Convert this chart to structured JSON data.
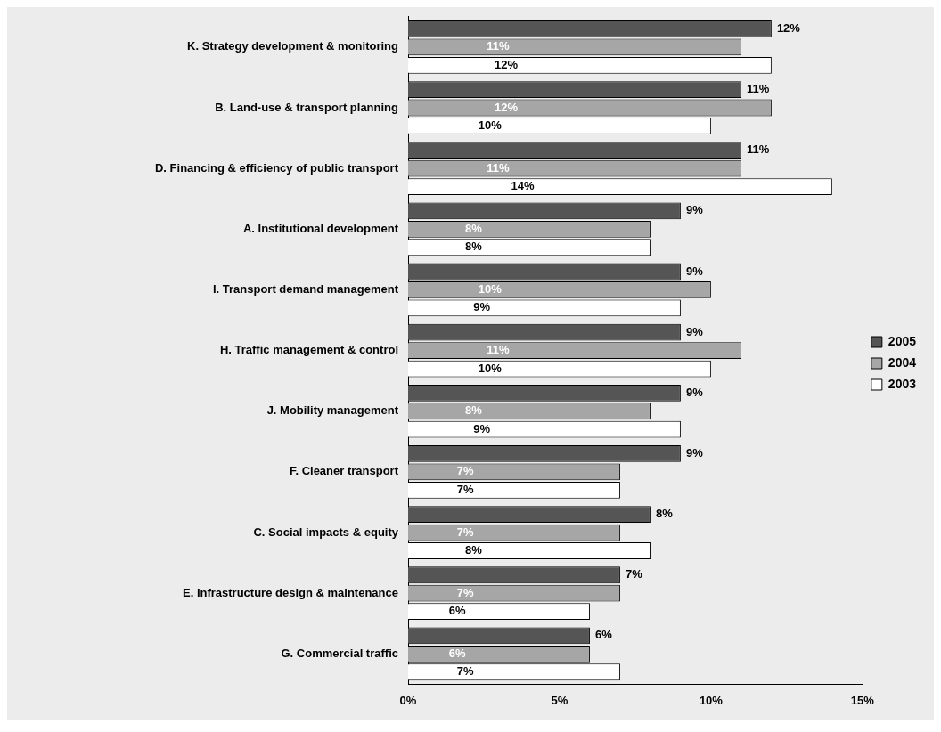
{
  "chart_data": {
    "type": "bar",
    "orientation": "horizontal",
    "categories": [
      "K. Strategy development & monitoring",
      "B. Land-use & transport planning",
      "D. Financing & efficiency of public transport",
      "A. Institutional development",
      "I. Transport demand management",
      "H. Traffic management & control",
      "J. Mobility management",
      "F. Cleaner transport",
      "C. Social impacts & equity",
      "E. Infrastructure design & maintenance",
      "G. Commercial traffic"
    ],
    "series": [
      {
        "name": "2005",
        "color": "#555555",
        "values": [
          12,
          11,
          11,
          9,
          9,
          9,
          9,
          9,
          8,
          7,
          6
        ],
        "value_labels": [
          "12%",
          "11%",
          "11%",
          "9%",
          "9%",
          "9%",
          "9%",
          "9%",
          "8%",
          "7%",
          "6%"
        ]
      },
      {
        "name": "2004",
        "color": "#a6a6a6",
        "values": [
          11,
          12,
          11,
          8,
          10,
          11,
          8,
          7,
          7,
          7,
          6
        ],
        "value_labels": [
          "11%",
          "12%",
          "11%",
          "8%",
          "10%",
          "11%",
          "8%",
          "7%",
          "7%",
          "7%",
          "6%"
        ]
      },
      {
        "name": "2003",
        "color": "#ffffff",
        "values": [
          12,
          10,
          14,
          8,
          9,
          10,
          9,
          7,
          8,
          6,
          7
        ],
        "value_labels": [
          "12%",
          "10%",
          "14%",
          "8%",
          "9%",
          "10%",
          "9%",
          "7%",
          "8%",
          "6%",
          "7%"
        ]
      }
    ],
    "xlim": [
      0,
      15
    ],
    "xticks": [
      {
        "value": 0,
        "label": "0%"
      },
      {
        "value": 5,
        "label": "5%"
      },
      {
        "value": 10,
        "label": "10%"
      },
      {
        "value": 15,
        "label": "15%"
      }
    ],
    "grid": false,
    "legend": "right"
  }
}
